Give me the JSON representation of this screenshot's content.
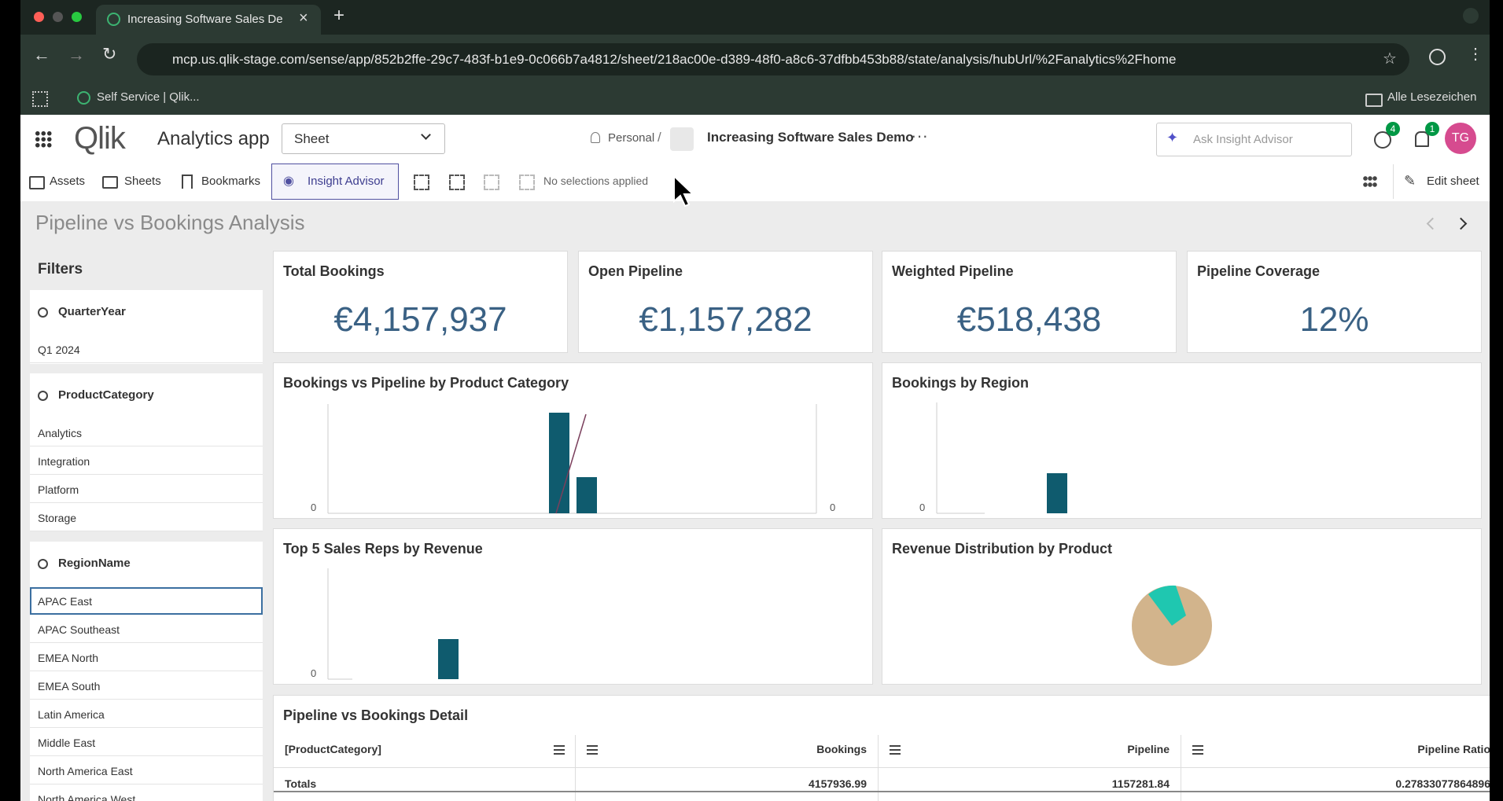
{
  "browser": {
    "tab_title": "Increasing Software Sales De",
    "url": "mcp.us.qlik-stage.com/sense/app/852b2ffe-29c7-483f-b1e9-0c066b7a4812/sheet/218ac00e-d389-48f0-a8c6-37dfbb453b88/state/analysis/hubUrl/%2Fanalytics%2Fhome",
    "bookmark": "Self Service | Qlik...",
    "all_bookmarks": "Alle Lesezeichen"
  },
  "header": {
    "logo": "Qlik",
    "app_name": "Analytics app",
    "sheet_select": "Sheet",
    "space": "Personal",
    "separator": "/",
    "app_title": "Increasing Software Sales Demo",
    "more": "···",
    "search_placeholder": "Ask Insight Advisor",
    "help_badge": 4,
    "notifications_badge": 1,
    "avatar": "TG"
  },
  "toolbar": {
    "assets": "Assets",
    "sheets": "Sheets",
    "bookmarks": "Bookmarks",
    "insight_advisor": "Insight Advisor",
    "selections": "No selections applied",
    "edit_sheet": "Edit sheet"
  },
  "sheet": {
    "title": "Pipeline vs Bookings Analysis"
  },
  "filters": {
    "title": "Filters",
    "panes": [
      {
        "field": "QuarterYear",
        "items": [
          "Q1 2024"
        ]
      },
      {
        "field": "ProductCategory",
        "items": [
          "Analytics",
          "Integration",
          "Platform",
          "Storage"
        ]
      },
      {
        "field": "RegionName",
        "items": [
          "APAC East",
          "APAC Southeast",
          "EMEA North",
          "EMEA South",
          "Latin America",
          "Middle East",
          "North America East",
          "North America West"
        ]
      }
    ]
  },
  "kpis": [
    {
      "title": "Total Bookings",
      "value": "€4,157,937"
    },
    {
      "title": "Open Pipeline",
      "value": "€1,157,282"
    },
    {
      "title": "Weighted Pipeline",
      "value": "€518,438"
    },
    {
      "title": "Pipeline Coverage",
      "value": "12%"
    }
  ],
  "charts": [
    {
      "title": "Bookings vs Pipeline by Product Category",
      "axis_labels": [
        "0",
        "0"
      ]
    },
    {
      "title": "Bookings by Region",
      "axis_labels": [
        "0"
      ]
    },
    {
      "title": "Top 5 Sales Reps by Revenue",
      "axis_labels": [
        "0"
      ]
    },
    {
      "title": "Revenue Distribution by Product"
    }
  ],
  "table": {
    "title": "Pipeline vs Bookings Detail",
    "columns": [
      "[ProductCategory]",
      "Bookings",
      "Pipeline",
      "Pipeline Ratio"
    ],
    "totals": [
      "Totals",
      "4157936.99",
      "1157281.84",
      "0.27833077864896"
    ]
  }
}
